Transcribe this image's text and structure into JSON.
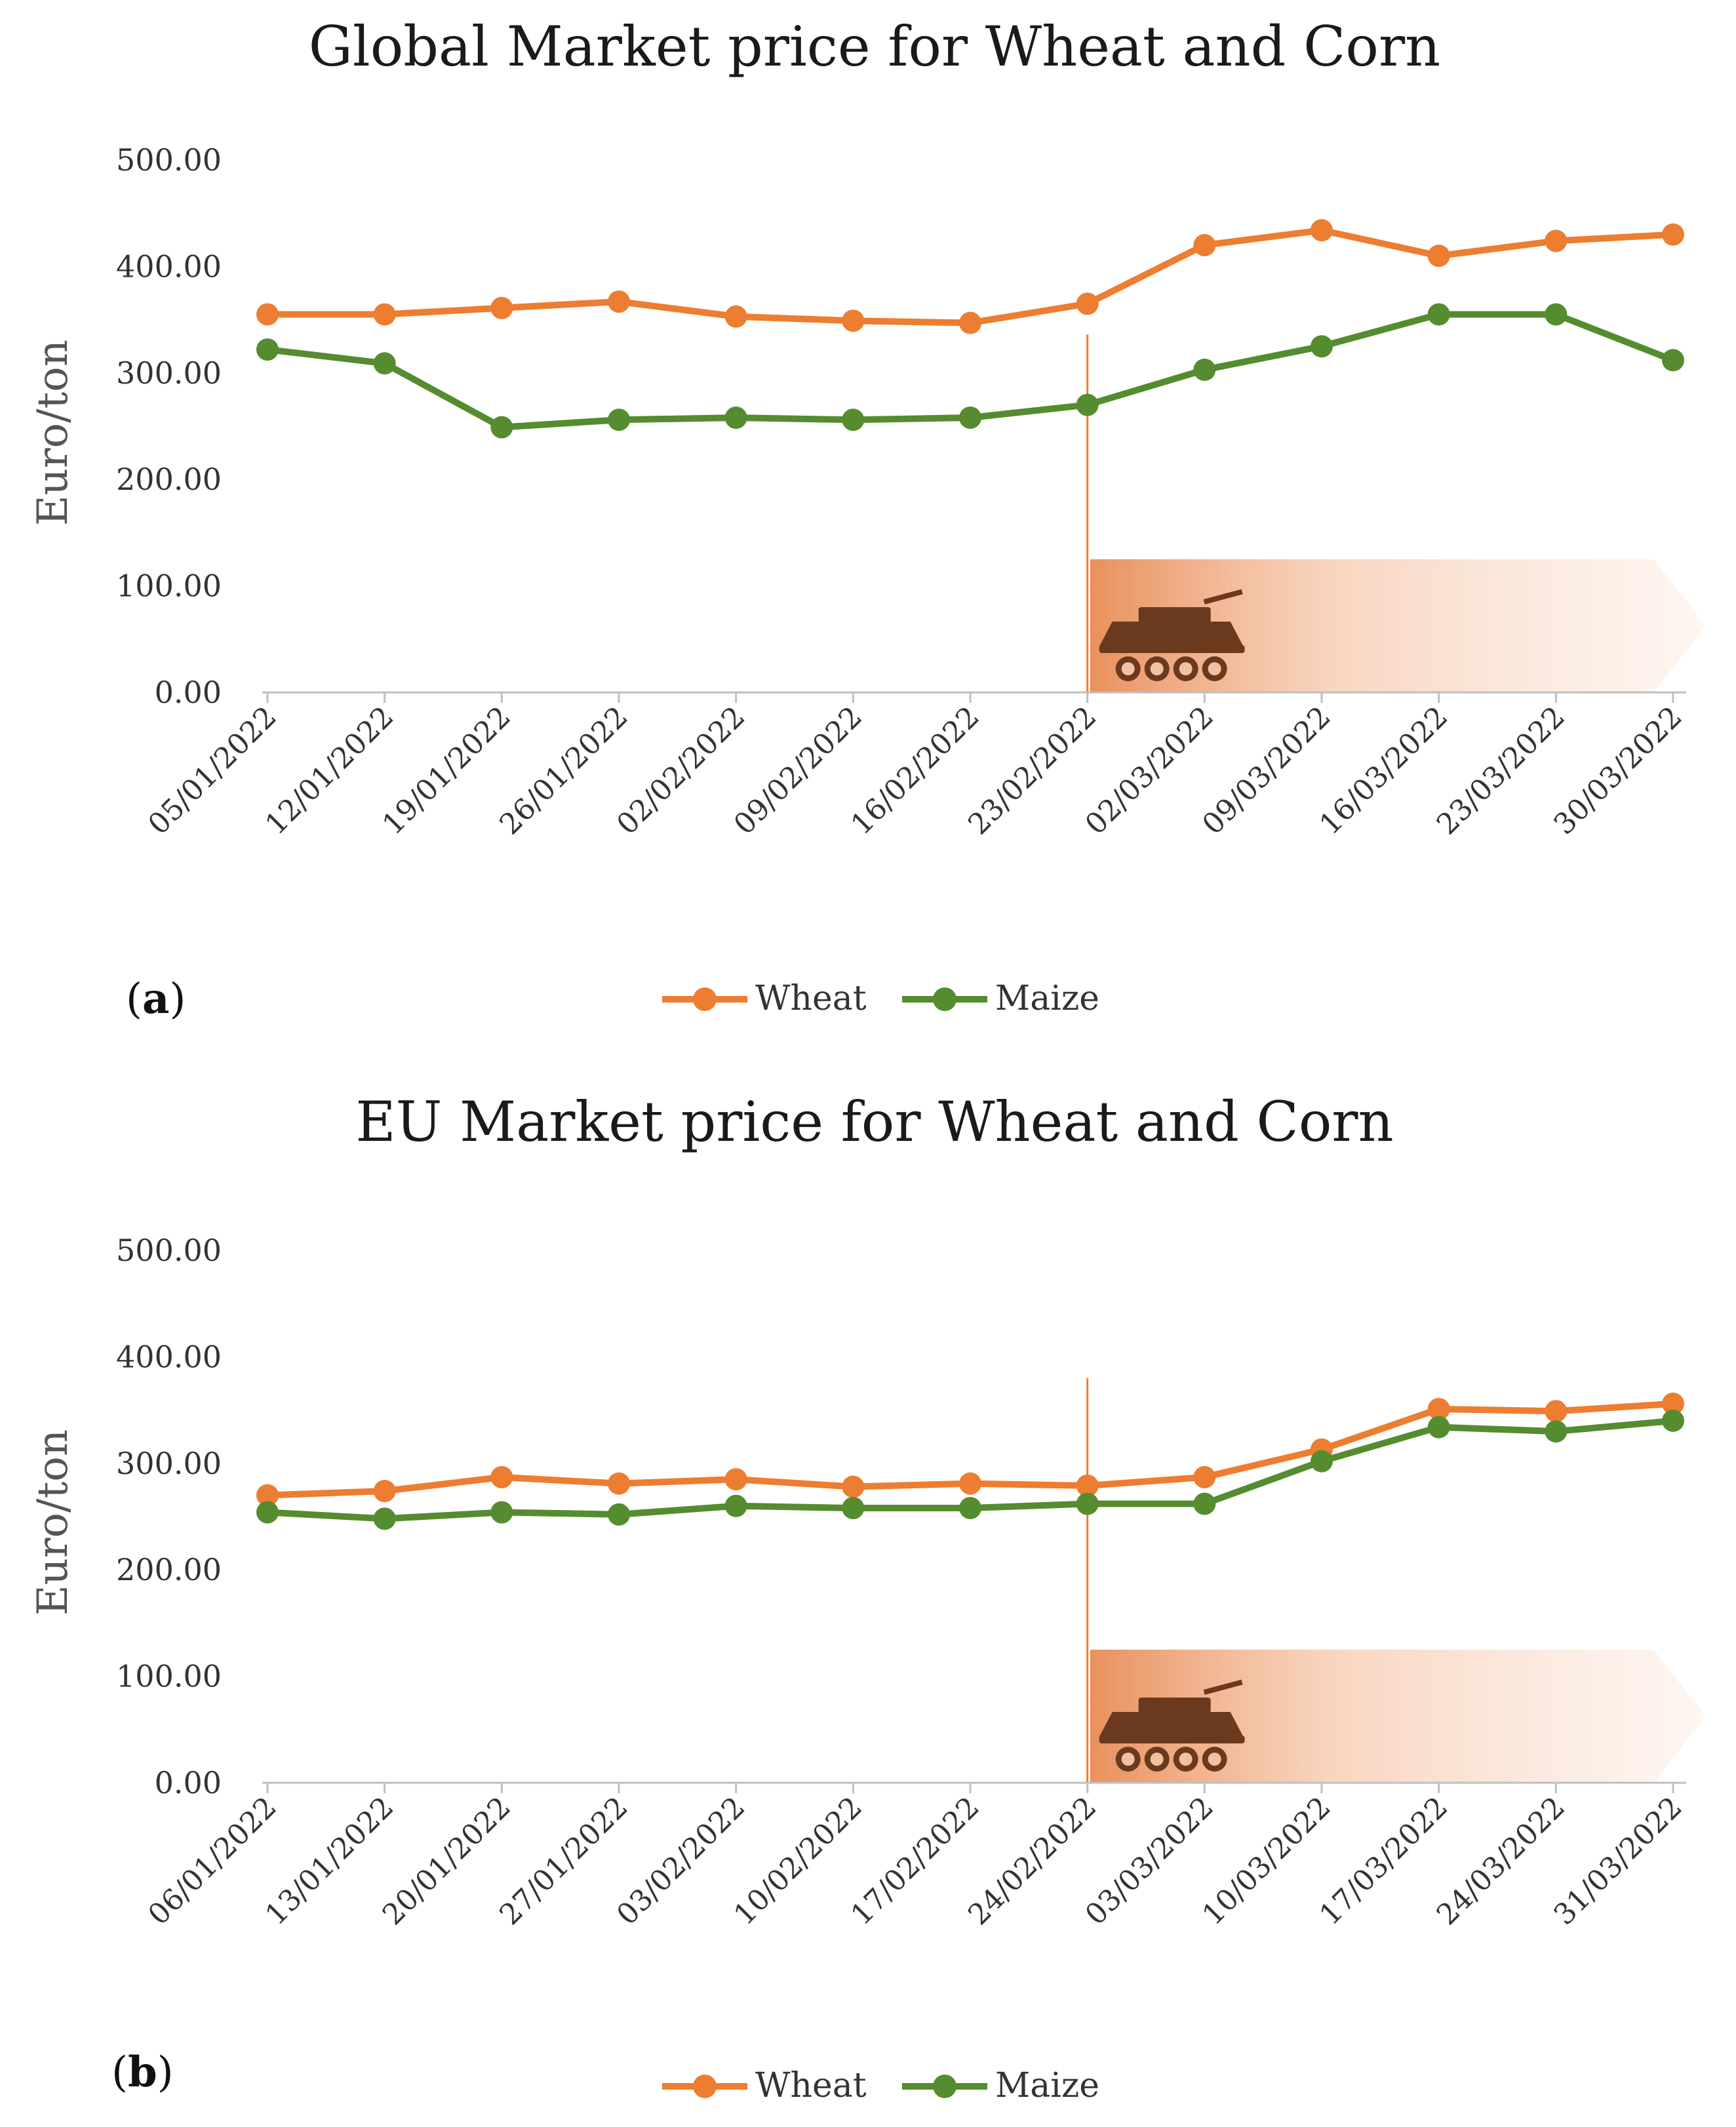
{
  "colors": {
    "wheat": "#ED7D31",
    "maize": "#548C2F",
    "band": "#E88A54",
    "tank": "#6B3A1E",
    "axis": "#BFBFBF"
  },
  "chart_data": [
    {
      "type": "line",
      "panel_label": "a",
      "title": "Global Market price  for Wheat and Corn",
      "ylabel": "Euro/ton",
      "xlabel": "",
      "ylim": [
        0,
        500
      ],
      "yticks": [
        "0.00",
        "100.00",
        "200.00",
        "300.00",
        "400.00",
        "500.00"
      ],
      "categories": [
        "05/01/2022",
        "12/01/2022",
        "19/01/2022",
        "26/01/2022",
        "02/02/2022",
        "09/02/2022",
        "16/02/2022",
        "23/02/2022",
        "02/03/2022",
        "09/03/2022",
        "16/03/2022",
        "23/03/2022",
        "30/03/2022"
      ],
      "series": [
        {
          "name": "Wheat",
          "values": [
            355,
            355,
            361,
            367,
            353,
            349,
            347,
            365,
            420,
            434,
            410,
            424,
            430
          ]
        },
        {
          "name": "Maize",
          "values": [
            322,
            309,
            249,
            256,
            258,
            256,
            258,
            270,
            303,
            325,
            355,
            355,
            312
          ]
        }
      ],
      "event_index": 7,
      "legend": "bottom-center",
      "grid": false
    },
    {
      "type": "line",
      "panel_label": "b",
      "title": "EU Market price  for Wheat and Corn",
      "ylabel": "Euro/ton",
      "xlabel": "",
      "ylim": [
        0,
        500
      ],
      "yticks": [
        "0.00",
        "100.00",
        "200.00",
        "300.00",
        "400.00",
        "500.00"
      ],
      "categories": [
        "06/01/2022",
        "13/01/2022",
        "20/01/2022",
        "27/01/2022",
        "03/02/2022",
        "10/02/2022",
        "17/02/2022",
        "24/02/2022",
        "03/03/2022",
        "10/03/2022",
        "17/03/2022",
        "24/03/2022",
        "31/03/2022"
      ],
      "series": [
        {
          "name": "Wheat",
          "values": [
            270,
            274,
            287,
            281,
            285,
            278,
            281,
            279,
            287,
            313,
            351,
            349,
            356
          ]
        },
        {
          "name": "Maize",
          "values": [
            254,
            248,
            254,
            252,
            260,
            258,
            258,
            262,
            262,
            302,
            334,
            330,
            340
          ]
        }
      ],
      "event_index": 7,
      "legend": "bottom-center",
      "grid": false
    }
  ]
}
